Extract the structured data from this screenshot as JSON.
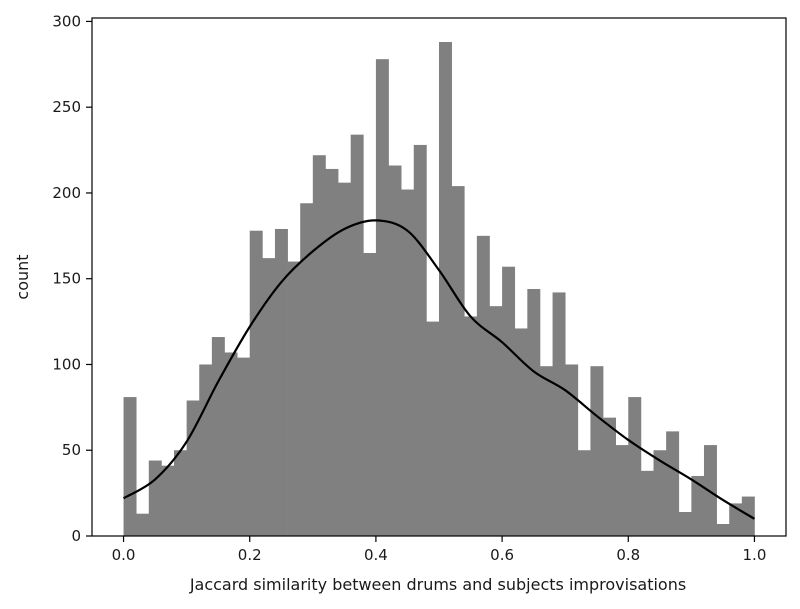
{
  "chart_data": {
    "type": "bar",
    "xlabel": "Jaccard similarity between drums and subjects improvisations",
    "ylabel": "count",
    "xlim": [
      -0.05,
      1.05
    ],
    "ylim": [
      0,
      302
    ],
    "grid": false,
    "legend": "none",
    "bar_color": "#808080",
    "curve_color": "#000000",
    "x_ticks": [
      0.0,
      0.2,
      0.4,
      0.6,
      0.8,
      1.0
    ],
    "x_tick_labels": [
      "0.0",
      "0.2",
      "0.4",
      "0.6",
      "0.8",
      "1.0"
    ],
    "y_ticks": [
      0,
      50,
      100,
      150,
      200,
      250,
      300
    ],
    "y_tick_labels": [
      "0",
      "50",
      "100",
      "150",
      "200",
      "250",
      "300"
    ],
    "bin_edges": [
      0.0,
      0.02,
      0.04,
      0.06,
      0.08,
      0.1,
      0.12,
      0.14,
      0.16,
      0.18,
      0.2,
      0.22,
      0.24,
      0.26,
      0.28,
      0.3,
      0.32,
      0.34,
      0.36,
      0.38,
      0.4,
      0.42,
      0.44,
      0.46,
      0.48,
      0.5,
      0.52,
      0.54,
      0.56,
      0.58,
      0.6,
      0.62,
      0.64,
      0.66,
      0.68,
      0.7,
      0.72,
      0.74,
      0.76,
      0.78,
      0.8,
      0.82,
      0.84,
      0.86,
      0.88,
      0.9,
      0.92,
      0.94,
      0.96,
      0.98,
      1.0
    ],
    "counts": [
      81,
      13,
      44,
      41,
      50,
      79,
      100,
      116,
      107,
      104,
      178,
      162,
      179,
      160,
      194,
      222,
      214,
      206,
      234,
      165,
      278,
      216,
      202,
      228,
      125,
      288,
      204,
      128,
      175,
      134,
      157,
      121,
      144,
      99,
      142,
      100,
      50,
      99,
      69,
      53,
      81,
      38,
      50,
      61,
      14,
      35,
      53,
      7,
      19,
      23
    ],
    "kde": {
      "x": [
        0.0,
        0.05,
        0.1,
        0.15,
        0.2,
        0.25,
        0.3,
        0.35,
        0.4,
        0.45,
        0.5,
        0.55,
        0.6,
        0.65,
        0.7,
        0.75,
        0.8,
        0.85,
        0.9,
        0.95,
        1.0
      ],
      "y": [
        22,
        33,
        55,
        90,
        122,
        148,
        166,
        179,
        184,
        178,
        155,
        128,
        113,
        96,
        85,
        70,
        56,
        44,
        33,
        21,
        10
      ]
    }
  }
}
